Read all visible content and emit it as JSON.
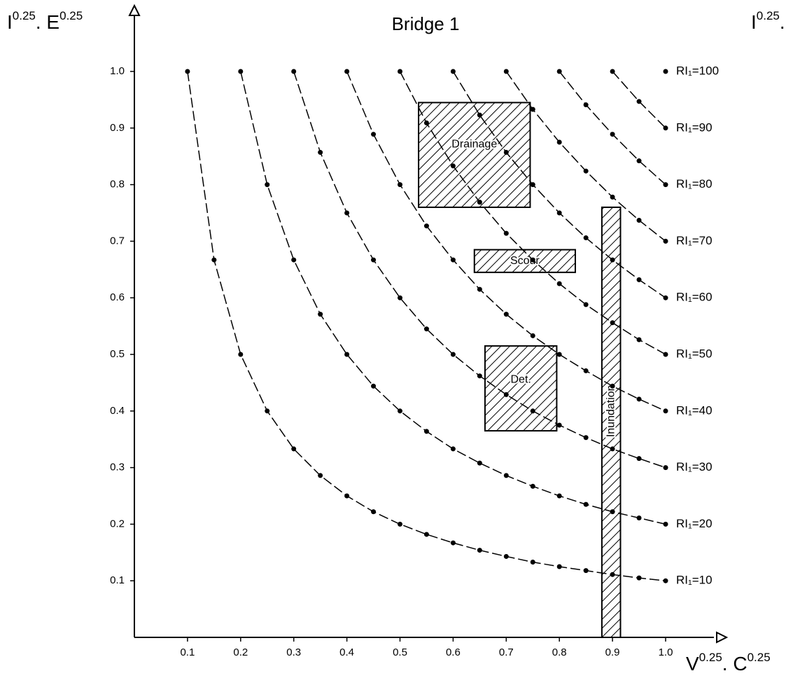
{
  "chart_data": {
    "type": "line",
    "title": "Bridge 1",
    "y_label": [
      "I",
      "0.25",
      ". E",
      "0.25"
    ],
    "y2_label": [
      "I",
      "0.25",
      "."
    ],
    "x_label": [
      "V",
      "0.25",
      ". C",
      "0.25"
    ],
    "xlim": [
      0,
      1.0
    ],
    "ylim": [
      0,
      1.0
    ],
    "xticks": [
      0.1,
      0.2,
      0.3,
      0.4,
      0.5,
      0.6,
      0.7,
      0.8,
      0.9,
      {
        "value": 1,
        "label": "1.0"
      }
    ],
    "yticks": [
      0.1,
      0.2,
      0.3,
      0.4,
      0.5,
      0.6,
      0.7,
      0.8,
      0.9,
      {
        "value": 1,
        "label": "1.0"
      }
    ],
    "series": [
      {
        "name": "RI₁=10",
        "color": "#000000",
        "x": [
          0.1,
          0.15,
          0.2,
          0.25,
          0.3,
          0.35,
          0.4,
          0.45,
          0.5,
          0.55,
          0.6,
          0.65,
          0.7,
          0.75,
          0.8,
          0.85,
          0.9,
          0.95,
          1
        ],
        "values": [
          1,
          0.667,
          0.5,
          0.4,
          0.333,
          0.286,
          0.25,
          0.222,
          0.2,
          0.182,
          0.167,
          0.154,
          0.143,
          0.133,
          0.125,
          0.118,
          0.111,
          0.105,
          0.1
        ]
      },
      {
        "name": "RI₁=20",
        "color": "#000000",
        "x": [
          0.2,
          0.25,
          0.3,
          0.35,
          0.4,
          0.45,
          0.5,
          0.55,
          0.6,
          0.65,
          0.7,
          0.75,
          0.8,
          0.85,
          0.9,
          0.95,
          1
        ],
        "values": [
          1,
          0.8,
          0.667,
          0.571,
          0.5,
          0.444,
          0.4,
          0.364,
          0.333,
          0.308,
          0.286,
          0.267,
          0.25,
          0.235,
          0.222,
          0.211,
          0.2
        ]
      },
      {
        "name": "RI₁=30",
        "color": "#000000",
        "x": [
          0.3,
          0.35,
          0.4,
          0.45,
          0.5,
          0.55,
          0.6,
          0.65,
          0.7,
          0.75,
          0.8,
          0.85,
          0.9,
          0.95,
          1
        ],
        "values": [
          1,
          0.857,
          0.75,
          0.667,
          0.6,
          0.545,
          0.5,
          0.462,
          0.429,
          0.4,
          0.375,
          0.353,
          0.333,
          0.316,
          0.3
        ]
      },
      {
        "name": "RI₁=40",
        "color": "#000000",
        "x": [
          0.4,
          0.45,
          0.5,
          0.55,
          0.6,
          0.65,
          0.7,
          0.75,
          0.8,
          0.85,
          0.9,
          0.95,
          1
        ],
        "values": [
          1,
          0.889,
          0.8,
          0.727,
          0.667,
          0.615,
          0.571,
          0.533,
          0.5,
          0.471,
          0.444,
          0.421,
          0.4
        ]
      },
      {
        "name": "RI₁=50",
        "color": "#000000",
        "x": [
          0.5,
          0.55,
          0.6,
          0.65,
          0.7,
          0.75,
          0.8,
          0.85,
          0.9,
          0.95,
          1
        ],
        "values": [
          1,
          0.909,
          0.833,
          0.769,
          0.714,
          0.667,
          0.625,
          0.588,
          0.556,
          0.526,
          0.5
        ]
      },
      {
        "name": "RI₁=60",
        "color": "#000000",
        "x": [
          0.6,
          0.65,
          0.7,
          0.75,
          0.8,
          0.85,
          0.9,
          0.95,
          1
        ],
        "values": [
          1,
          0.923,
          0.857,
          0.8,
          0.75,
          0.706,
          0.667,
          0.632,
          0.6
        ]
      },
      {
        "name": "RI₁=70",
        "color": "#000000",
        "x": [
          0.7,
          0.75,
          0.8,
          0.85,
          0.9,
          0.95,
          1
        ],
        "values": [
          1,
          0.933,
          0.875,
          0.824,
          0.778,
          0.737,
          0.7
        ]
      },
      {
        "name": "RI₁=80",
        "color": "#000000",
        "x": [
          0.8,
          0.85,
          0.9,
          0.95,
          1
        ],
        "values": [
          1,
          0.941,
          0.889,
          0.842,
          0.8
        ]
      },
      {
        "name": "RI₁=90",
        "color": "#000000",
        "x": [
          0.9,
          0.95,
          1
        ],
        "values": [
          1,
          0.947,
          0.9
        ]
      },
      {
        "name": "RI₁=100",
        "color": "#000000",
        "x": [
          1
        ],
        "values": [
          1
        ]
      }
    ],
    "regions": [
      {
        "label": "Drainage",
        "x": [
          0.535,
          0.745
        ],
        "y": [
          0.76,
          0.945
        ]
      },
      {
        "label": "Scour",
        "x": [
          0.64,
          0.83
        ],
        "y": [
          0.645,
          0.685
        ]
      },
      {
        "label": "Det.",
        "x": [
          0.66,
          0.795
        ],
        "y": [
          0.365,
          0.515
        ]
      },
      {
        "label": "Inundation",
        "x": [
          0.88,
          0.915
        ],
        "y": [
          0,
          0.76
        ]
      }
    ]
  }
}
